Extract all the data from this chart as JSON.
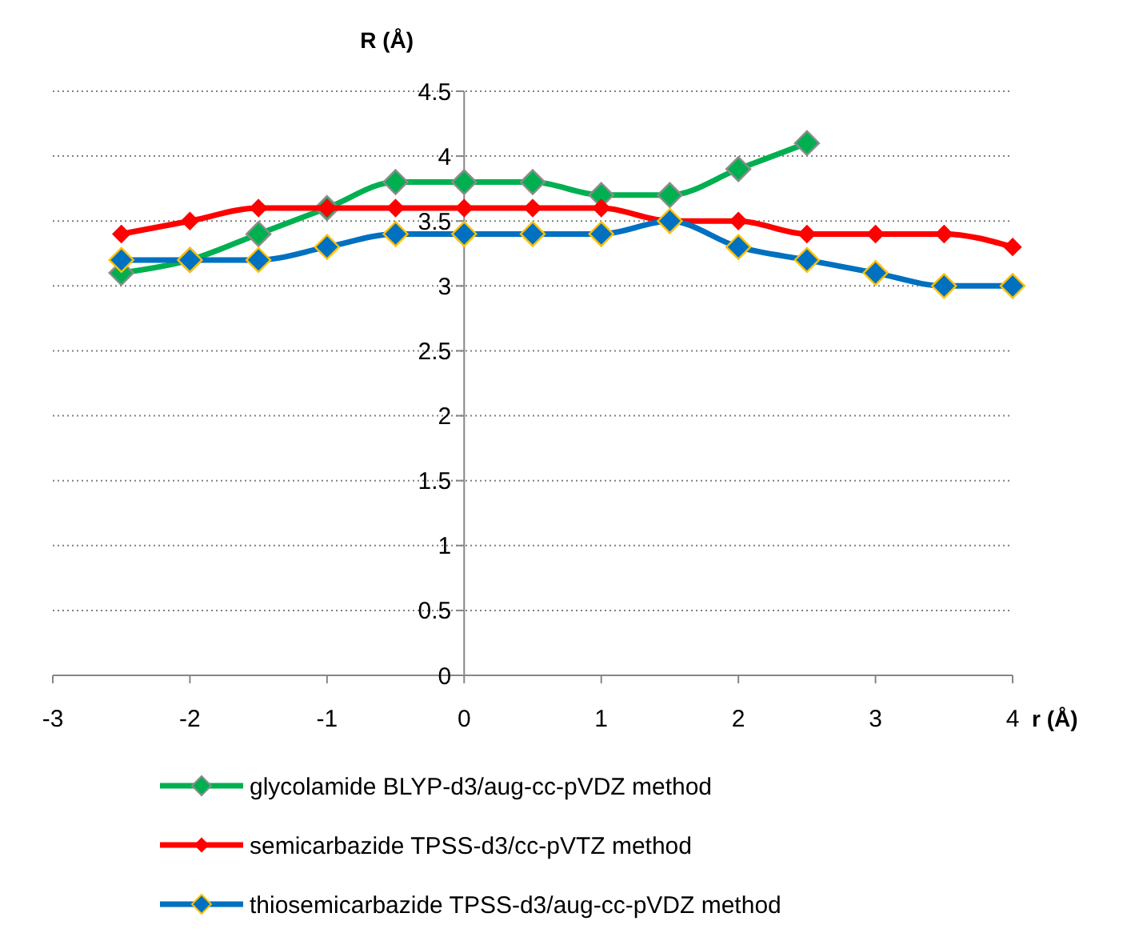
{
  "chart_data": {
    "type": "line",
    "xlabel": "r (Å)",
    "ylabel": "R (Å)",
    "xlim": [
      -3,
      4
    ],
    "xticks": [
      -3,
      -2,
      -1,
      0,
      1,
      2,
      3,
      4
    ],
    "ylim": [
      0,
      4.5
    ],
    "yticks": [
      0,
      0.5,
      1,
      1.5,
      2,
      2.5,
      3,
      3.5,
      4,
      4.5
    ],
    "grid": "y",
    "legend": "bottom",
    "marker": "diamond",
    "line_style": "solid",
    "series": [
      {
        "name": "glycolamide BLYP-d3/aug-cc-pVDZ method",
        "color": "#00b050",
        "x": [
          -2.5,
          -2,
          -1.5,
          -1,
          -0.5,
          0,
          0.5,
          1,
          1.5,
          2,
          2.5
        ],
        "values": [
          3.1,
          3.2,
          3.4,
          3.6,
          3.8,
          3.8,
          3.8,
          3.7,
          3.7,
          3.9,
          4.1
        ]
      },
      {
        "name": "semicarbazide TPSS-d3/cc-pVTZ method",
        "color": "#ff0000",
        "x": [
          -2.5,
          -2,
          -1.5,
          -1,
          -0.5,
          0,
          0.5,
          1,
          1.5,
          2,
          2.5,
          3,
          3.5,
          4
        ],
        "values": [
          3.4,
          3.5,
          3.6,
          3.6,
          3.6,
          3.6,
          3.6,
          3.6,
          3.5,
          3.5,
          3.4,
          3.4,
          3.4,
          3.3
        ]
      },
      {
        "name": "thiosemicarbazide TPSS-d3/aug-cc-pVDZ method",
        "color": "#0070c0",
        "x": [
          -2.5,
          -2,
          -1.5,
          -1,
          -0.5,
          0,
          0.5,
          1,
          1.5,
          2,
          2.5,
          3,
          3.5,
          4
        ],
        "values": [
          3.2,
          3.2,
          3.2,
          3.3,
          3.4,
          3.4,
          3.4,
          3.4,
          3.5,
          3.3,
          3.2,
          3.1,
          3.0,
          3.0
        ]
      }
    ]
  }
}
